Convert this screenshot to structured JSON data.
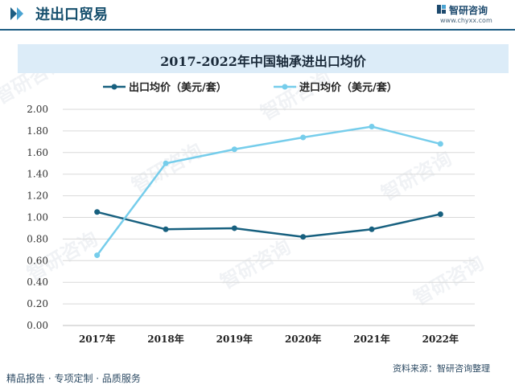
{
  "header": {
    "section_title": "进出口贸易",
    "brand_name": "智研咨询",
    "brand_url": "www.chyxx.com"
  },
  "footer": {
    "left_text": "精品报告 · 专项定制 · 品质服务",
    "source_text": "资料来源：智研咨询整理"
  },
  "watermark": {
    "text": "智研咨询"
  },
  "chart_data": {
    "type": "line",
    "title": "2017-2022年中国轴承进出口均价",
    "categories": [
      "2017年",
      "2018年",
      "2019年",
      "2020年",
      "2021年",
      "2022年"
    ],
    "series": [
      {
        "name": "出口均价（美元/套）",
        "color": "#17607f",
        "values": [
          1.05,
          0.89,
          0.9,
          0.82,
          0.89,
          1.03
        ]
      },
      {
        "name": "进口均价（美元/套）",
        "color": "#76cdeb",
        "values": [
          0.65,
          1.5,
          1.63,
          1.74,
          1.84,
          1.68
        ]
      }
    ],
    "ylim": [
      0,
      2.0
    ],
    "yticks": [
      "0.00",
      "0.20",
      "0.40",
      "0.60",
      "0.80",
      "1.00",
      "1.20",
      "1.40",
      "1.60",
      "1.80",
      "2.00"
    ],
    "grid": true,
    "legend_position": "top-center"
  }
}
